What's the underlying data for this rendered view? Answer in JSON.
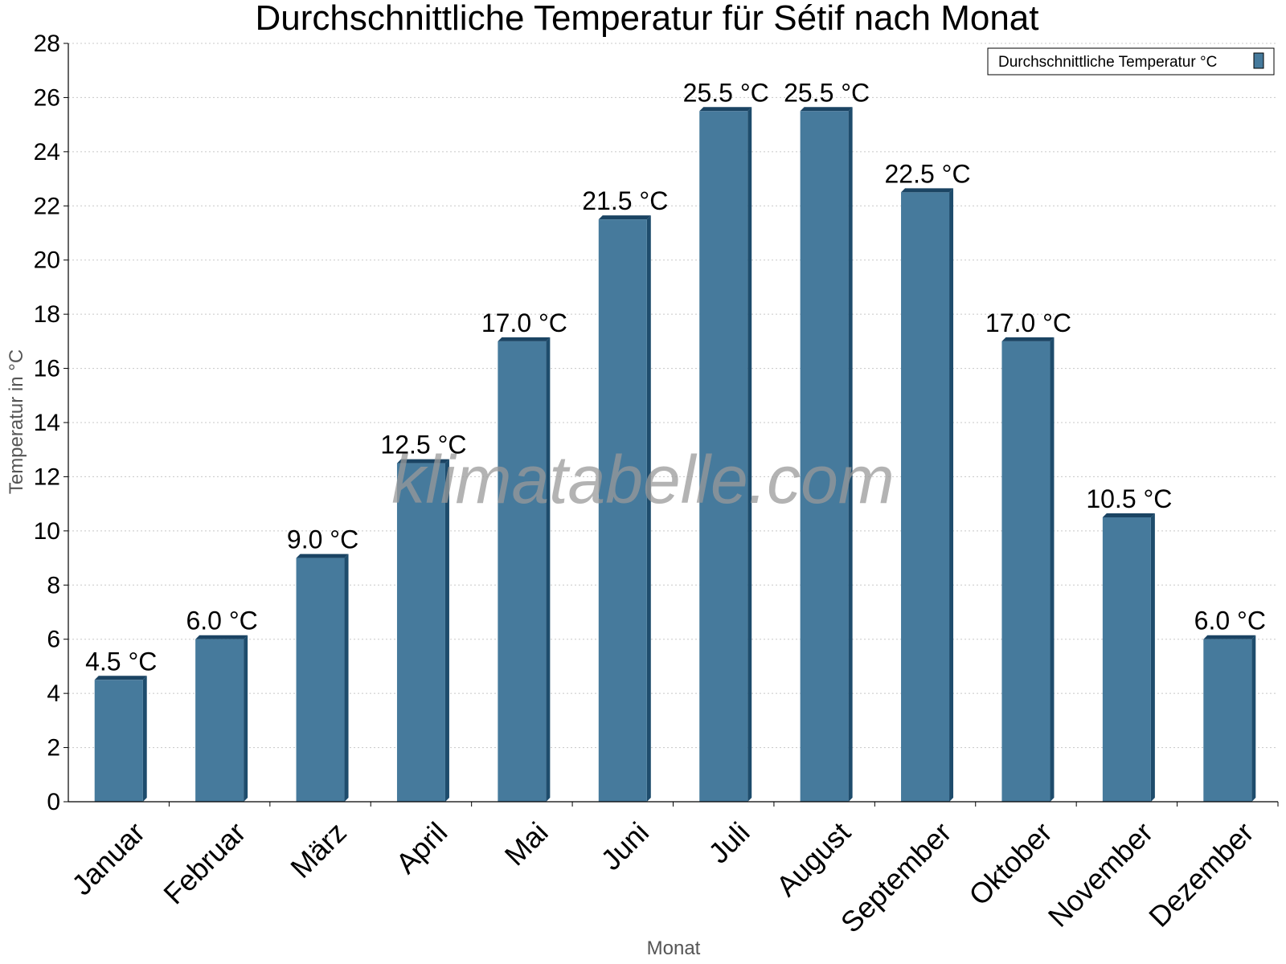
{
  "chart_data": {
    "type": "bar",
    "title": "Durchschnittliche Temperatur für Sétif nach Monat",
    "xlabel": "Monat",
    "ylabel": "Temperatur in °C",
    "categories": [
      "Januar",
      "Februar",
      "März",
      "April",
      "Mai",
      "Juni",
      "Juli",
      "August",
      "September",
      "Oktober",
      "November",
      "Dezember"
    ],
    "series": [
      {
        "name": "Durchschnittliche Temperatur °C",
        "values": [
          4.5,
          6.0,
          9.0,
          12.5,
          17.0,
          21.5,
          25.5,
          25.5,
          22.5,
          17.0,
          10.5,
          6.0
        ],
        "labels": [
          "4.5 °C",
          "6.0 °C",
          "9.0 °C",
          "12.5 °C",
          "17.0 °C",
          "21.5 °C",
          "25.5 °C",
          "25.5 °C",
          "22.5 °C",
          "17.0 °C",
          "10.5 °C",
          "6.0 °C"
        ]
      }
    ],
    "ylim": [
      0,
      28
    ],
    "yticks": [
      0,
      2,
      4,
      6,
      8,
      10,
      12,
      14,
      16,
      18,
      20,
      22,
      24,
      26,
      28
    ],
    "grid": true,
    "legend_position": "top-right",
    "watermark": "klimatabelle.com",
    "colors": {
      "bar": "#467a9c",
      "bar_side": "#1e4c6c",
      "bar_top": "#1b4463",
      "grid": "#c8c8c8",
      "axis": "#000000"
    }
  }
}
